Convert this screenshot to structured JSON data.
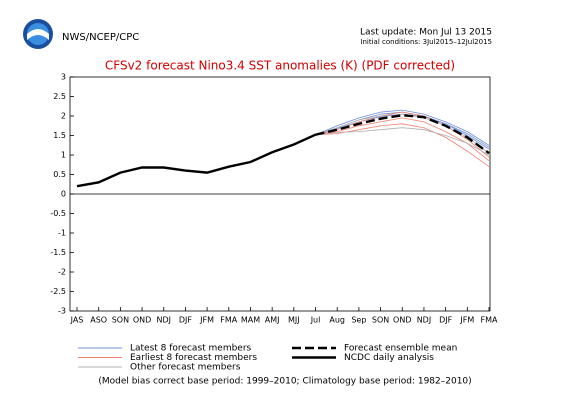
{
  "header": {
    "org": "NWS/NCEP/CPC",
    "last_update": "Last update: Mon Jul 13 2015",
    "initial_conditions": "Initial conditions: 3Jul2015–12Jul2015"
  },
  "chart_data": {
    "type": "line",
    "title": "CFSv2 forecast Nino3.4 SST anomalies (K) (PDF corrected)",
    "categories": [
      "JAS",
      "ASO",
      "SON",
      "OND",
      "NDJ",
      "DJF",
      "JFM",
      "FMA",
      "MAM",
      "AMJ",
      "MJJ",
      "Jul",
      "Aug",
      "Sep",
      "SON",
      "OND",
      "NDJ",
      "DJF",
      "JFM",
      "FMA"
    ],
    "ylim": [
      -3,
      3
    ],
    "yticks": [
      -3,
      -2.5,
      -2,
      -1.5,
      -1,
      -0.5,
      0,
      0.5,
      1,
      1.5,
      2,
      2.5,
      3
    ],
    "series": [
      {
        "name": "Latest 8 forecast members",
        "color": "#6f8fd6",
        "members": [
          [
            null,
            null,
            null,
            null,
            null,
            null,
            null,
            null,
            null,
            null,
            null,
            1.52,
            1.75,
            1.95,
            2.1,
            2.15,
            2.05,
            1.85,
            1.6,
            1.25
          ],
          [
            null,
            null,
            null,
            null,
            null,
            null,
            null,
            null,
            null,
            null,
            null,
            1.52,
            1.7,
            1.9,
            2.05,
            2.1,
            2.0,
            1.8,
            1.5,
            1.15
          ],
          [
            null,
            null,
            null,
            null,
            null,
            null,
            null,
            null,
            null,
            null,
            null,
            1.52,
            1.68,
            1.85,
            1.98,
            2.05,
            1.98,
            1.8,
            1.55,
            1.2
          ]
        ]
      },
      {
        "name": "Earliest 8 forecast members",
        "color": "#f08070",
        "members": [
          [
            null,
            null,
            null,
            null,
            null,
            null,
            null,
            null,
            null,
            null,
            null,
            1.52,
            1.6,
            1.75,
            1.85,
            1.95,
            1.85,
            1.6,
            1.3,
            0.85
          ],
          [
            null,
            null,
            null,
            null,
            null,
            null,
            null,
            null,
            null,
            null,
            null,
            1.52,
            1.55,
            1.65,
            1.75,
            1.8,
            1.7,
            1.45,
            1.1,
            0.7
          ],
          [
            null,
            null,
            null,
            null,
            null,
            null,
            null,
            null,
            null,
            null,
            null,
            1.52,
            1.65,
            1.85,
            2.0,
            2.1,
            2.0,
            1.75,
            1.4,
            0.95
          ]
        ]
      },
      {
        "name": "Other forecast members",
        "color": "#b0b0b0",
        "members": [
          [
            null,
            null,
            null,
            null,
            null,
            null,
            null,
            null,
            null,
            null,
            null,
            1.52,
            1.58,
            1.6,
            1.65,
            1.7,
            1.65,
            1.5,
            1.3,
            1.0
          ],
          [
            null,
            null,
            null,
            null,
            null,
            null,
            null,
            null,
            null,
            null,
            null,
            1.52,
            1.7,
            1.9,
            2.0,
            2.05,
            1.95,
            1.75,
            1.45,
            1.05
          ]
        ]
      },
      {
        "name": "Forecast ensemble mean",
        "color": "#000000",
        "dashed": true,
        "values": [
          null,
          null,
          null,
          null,
          null,
          null,
          null,
          null,
          null,
          null,
          null,
          1.52,
          1.65,
          1.8,
          1.93,
          2.02,
          1.97,
          1.75,
          1.45,
          1.05
        ]
      },
      {
        "name": "NCDC daily analysis",
        "color": "#000000",
        "values": [
          0.2,
          0.3,
          0.55,
          0.68,
          0.68,
          0.6,
          0.55,
          0.7,
          0.82,
          1.07,
          1.27,
          1.52,
          null,
          null,
          null,
          null,
          null,
          null,
          null,
          null
        ]
      }
    ],
    "footnote": "(Model bias correct base period: 1999–2010; Climatology base period: 1982–2010)"
  }
}
